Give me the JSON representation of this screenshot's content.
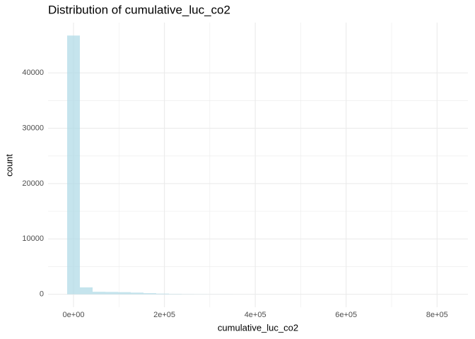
{
  "chart_data": {
    "type": "histogram",
    "title": "Distribution of cumulative_luc_co2",
    "xlabel": "cumulative_luc_co2",
    "ylabel": "count",
    "bins": [
      -14000,
      14000,
      42000,
      70000,
      98000,
      126000,
      154000,
      182000,
      210000,
      238000,
      266000,
      294000,
      322000,
      350000,
      378000,
      406000,
      434000,
      462000,
      490000,
      518000,
      546000,
      574000,
      602000,
      630000,
      658000,
      686000,
      714000,
      742000,
      770000,
      798000,
      826000
    ],
    "values": [
      46750,
      1250,
      450,
      420,
      380,
      300,
      200,
      120,
      60,
      30,
      20,
      10,
      10,
      5,
      5,
      3,
      2,
      2,
      1,
      1,
      1,
      1,
      0,
      0,
      0,
      0,
      0,
      0,
      0,
      1
    ],
    "color": "#add8e6",
    "xlim": [
      -56000,
      868000
    ],
    "ylim": [
      -2340,
      49090
    ],
    "xticks": [
      {
        "value": 0,
        "label": "0e+00"
      },
      {
        "value": 200000,
        "label": "2e+05"
      },
      {
        "value": 400000,
        "label": "4e+05"
      },
      {
        "value": 600000,
        "label": "6e+05"
      },
      {
        "value": 800000,
        "label": "8e+05"
      }
    ],
    "yticks": [
      0,
      10000,
      20000,
      30000,
      40000
    ],
    "grid": true
  }
}
